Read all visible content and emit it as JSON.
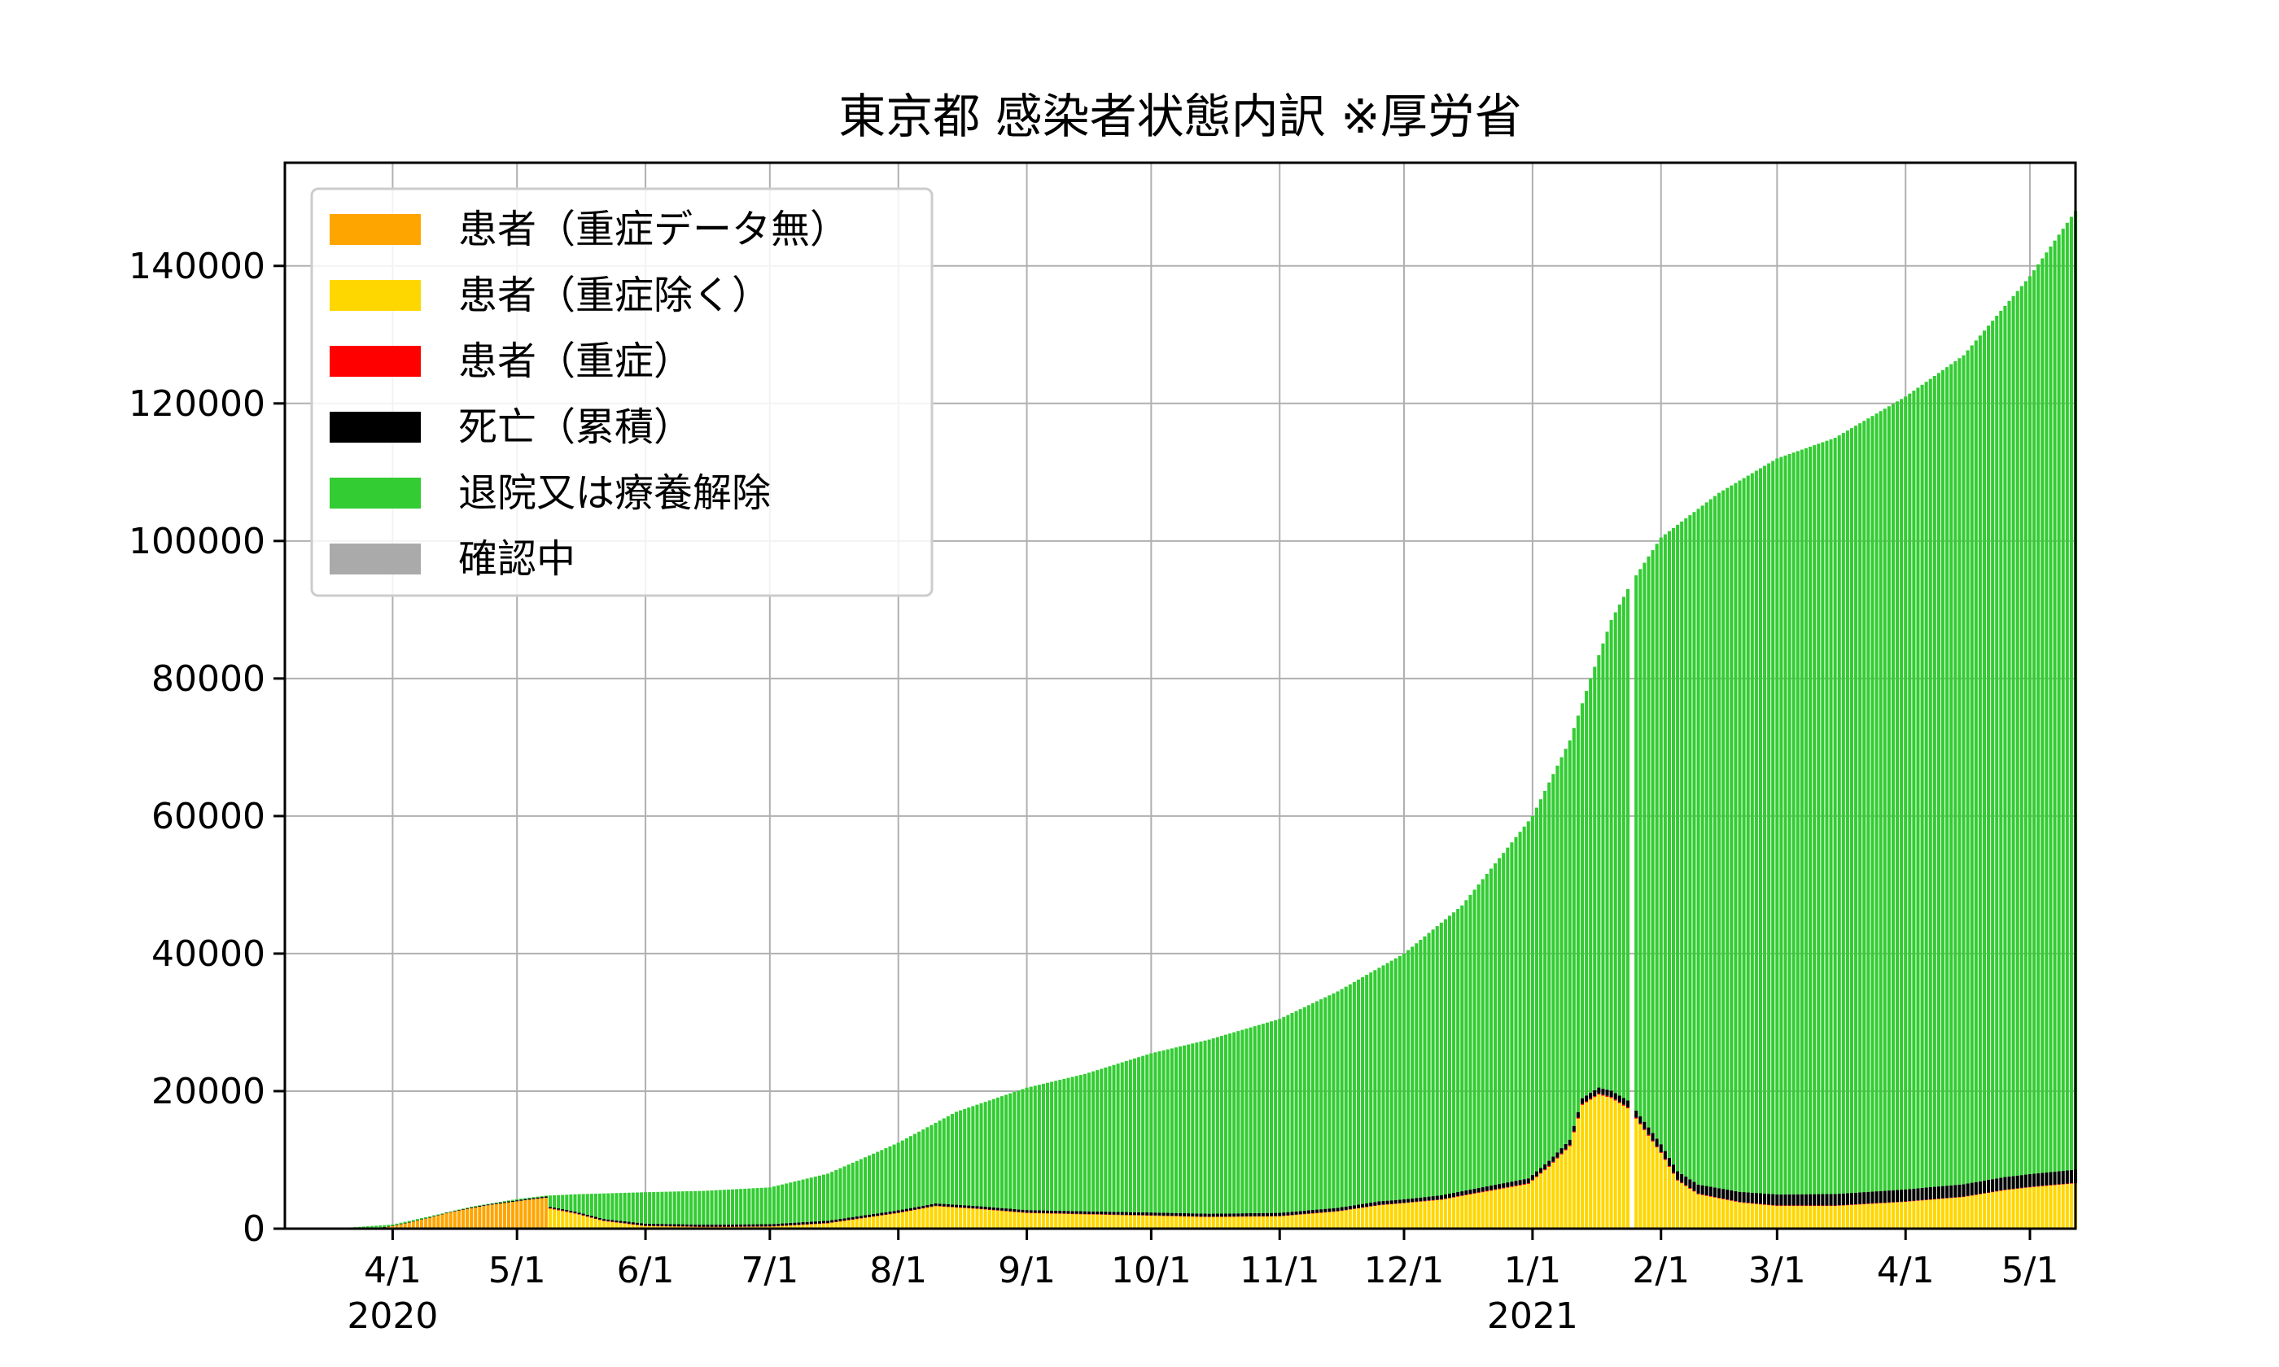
{
  "chart_data": {
    "type": "bar",
    "stacked": true,
    "title": "東京都 感染者状態内訳 ※厚労省",
    "xlabel": "",
    "ylabel": "",
    "ylim": [
      0,
      155000
    ],
    "x_range": [
      "2020-03-06",
      "2021-05-12"
    ],
    "grid": true,
    "legend_position": "top-left",
    "colors": {
      "patient_no_severe": "#FFA500",
      "patient_excl_severe": "#FFD700",
      "patient_severe": "#FF0000",
      "deaths": "#000000",
      "recovered": "#33CC33",
      "unconfirmed": "#AAAAAA"
    },
    "y_ticks": [
      {
        "value": 0,
        "label": "0"
      },
      {
        "value": 20000,
        "label": "20000"
      },
      {
        "value": 40000,
        "label": "40000"
      },
      {
        "value": 60000,
        "label": "60000"
      },
      {
        "value": 80000,
        "label": "80000"
      },
      {
        "value": 100000,
        "label": "100000"
      },
      {
        "value": 120000,
        "label": "120000"
      },
      {
        "value": 140000,
        "label": "140000"
      }
    ],
    "x_ticks": [
      {
        "date": "2020-04-01",
        "label": "4/1",
        "year_label": "2020"
      },
      {
        "date": "2020-05-01",
        "label": "5/1",
        "year_label": ""
      },
      {
        "date": "2020-06-01",
        "label": "6/1",
        "year_label": ""
      },
      {
        "date": "2020-07-01",
        "label": "7/1",
        "year_label": ""
      },
      {
        "date": "2020-08-01",
        "label": "8/1",
        "year_label": ""
      },
      {
        "date": "2020-09-01",
        "label": "9/1",
        "year_label": ""
      },
      {
        "date": "2020-10-01",
        "label": "10/1",
        "year_label": ""
      },
      {
        "date": "2020-11-01",
        "label": "11/1",
        "year_label": ""
      },
      {
        "date": "2020-12-01",
        "label": "12/1",
        "year_label": ""
      },
      {
        "date": "2021-01-01",
        "label": "1/1",
        "year_label": "2021"
      },
      {
        "date": "2021-02-01",
        "label": "2/1",
        "year_label": ""
      },
      {
        "date": "2021-03-01",
        "label": "3/1",
        "year_label": ""
      },
      {
        "date": "2021-04-01",
        "label": "4/1",
        "year_label": ""
      },
      {
        "date": "2021-05-01",
        "label": "5/1",
        "year_label": ""
      }
    ],
    "series": [
      {
        "key": "patient_no_severe",
        "name": "患者（重症データ無）"
      },
      {
        "key": "patient_excl_severe",
        "name": "患者（重症除く）"
      },
      {
        "key": "patient_severe",
        "name": "患者（重症）"
      },
      {
        "key": "deaths",
        "name": "死亡（累積）"
      },
      {
        "key": "recovered",
        "name": "退院又は療養解除"
      },
      {
        "key": "unconfirmed",
        "name": "確認中"
      }
    ],
    "missing_dates": [
      "2021-01-25"
    ],
    "keypoints": {
      "patient_no_severe": [
        [
          "2020-03-26",
          0
        ],
        [
          "2020-03-29",
          150
        ],
        [
          "2020-04-01",
          400
        ],
        [
          "2020-04-05",
          900
        ],
        [
          "2020-04-10",
          1600
        ],
        [
          "2020-04-15",
          2400
        ],
        [
          "2020-04-20",
          3000
        ],
        [
          "2020-04-25",
          3500
        ],
        [
          "2020-04-30",
          3900
        ],
        [
          "2020-05-05",
          4300
        ],
        [
          "2020-05-08",
          4500
        ]
      ],
      "patient_excl_severe": [
        [
          "2020-05-09",
          2900
        ],
        [
          "2020-05-15",
          2200
        ],
        [
          "2020-05-22",
          1100
        ],
        [
          "2020-06-01",
          400
        ],
        [
          "2020-06-15",
          250
        ],
        [
          "2020-07-01",
          300
        ],
        [
          "2020-07-15",
          800
        ],
        [
          "2020-08-01",
          2300
        ],
        [
          "2020-08-10",
          3300
        ],
        [
          "2020-08-20",
          2900
        ],
        [
          "2020-09-01",
          2300
        ],
        [
          "2020-09-15",
          2100
        ],
        [
          "2020-10-01",
          1900
        ],
        [
          "2020-10-15",
          1700
        ],
        [
          "2020-11-01",
          1800
        ],
        [
          "2020-11-15",
          2500
        ],
        [
          "2020-11-25",
          3400
        ],
        [
          "2020-12-01",
          3700
        ],
        [
          "2020-12-10",
          4200
        ],
        [
          "2020-12-20",
          5300
        ],
        [
          "2020-12-31",
          6500
        ],
        [
          "2021-01-05",
          9000
        ],
        [
          "2021-01-10",
          12000
        ],
        [
          "2021-01-13",
          18000
        ],
        [
          "2021-01-17",
          19500
        ],
        [
          "2021-01-20",
          19000
        ],
        [
          "2021-01-24",
          17500
        ],
        [
          "2021-01-26",
          16000
        ],
        [
          "2021-02-01",
          11000
        ],
        [
          "2021-02-05",
          7000
        ],
        [
          "2021-02-10",
          5000
        ],
        [
          "2021-02-20",
          3800
        ],
        [
          "2021-03-01",
          3300
        ],
        [
          "2021-03-15",
          3300
        ],
        [
          "2021-04-01",
          3900
        ],
        [
          "2021-04-15",
          4600
        ],
        [
          "2021-04-25",
          5600
        ],
        [
          "2021-05-01",
          6000
        ],
        [
          "2021-05-12",
          6600
        ]
      ],
      "patient_severe": [
        [
          "2020-05-09",
          100
        ],
        [
          "2020-06-01",
          30
        ],
        [
          "2020-08-10",
          30
        ],
        [
          "2020-12-01",
          60
        ],
        [
          "2021-01-20",
          160
        ],
        [
          "2021-02-15",
          90
        ],
        [
          "2021-04-01",
          60
        ],
        [
          "2021-05-12",
          80
        ]
      ],
      "deaths": [
        [
          "2020-03-26",
          0
        ],
        [
          "2020-05-09",
          180
        ],
        [
          "2020-06-01",
          300
        ],
        [
          "2020-07-01",
          325
        ],
        [
          "2020-08-01",
          335
        ],
        [
          "2020-09-01",
          370
        ],
        [
          "2020-10-01",
          410
        ],
        [
          "2020-11-01",
          450
        ],
        [
          "2020-12-01",
          520
        ],
        [
          "2021-01-01",
          700
        ],
        [
          "2021-01-20",
          900
        ],
        [
          "2021-02-01",
          1150
        ],
        [
          "2021-02-15",
          1400
        ],
        [
          "2021-03-01",
          1600
        ],
        [
          "2021-04-01",
          1750
        ],
        [
          "2021-05-12",
          1900
        ]
      ],
      "total": [
        [
          "2020-03-06",
          20
        ],
        [
          "2020-03-20",
          100
        ],
        [
          "2020-04-01",
          600
        ],
        [
          "2020-04-10",
          1800
        ],
        [
          "2020-04-20",
          3200
        ],
        [
          "2020-05-01",
          4300
        ],
        [
          "2020-05-08",
          4800
        ],
        [
          "2020-05-15",
          5000
        ],
        [
          "2020-06-01",
          5300
        ],
        [
          "2020-06-15",
          5500
        ],
        [
          "2020-07-01",
          6000
        ],
        [
          "2020-07-15",
          8000
        ],
        [
          "2020-08-01",
          12500
        ],
        [
          "2020-08-15",
          17000
        ],
        [
          "2020-09-01",
          20500
        ],
        [
          "2020-09-15",
          22500
        ],
        [
          "2020-10-01",
          25500
        ],
        [
          "2020-10-15",
          27500
        ],
        [
          "2020-11-01",
          30500
        ],
        [
          "2020-11-15",
          34500
        ],
        [
          "2020-12-01",
          40000
        ],
        [
          "2020-12-15",
          47000
        ],
        [
          "2021-01-01",
          60000
        ],
        [
          "2021-01-10",
          71000
        ],
        [
          "2021-01-15",
          80000
        ],
        [
          "2021-01-20",
          88500
        ],
        [
          "2021-01-24",
          93000
        ],
        [
          "2021-01-26",
          95000
        ],
        [
          "2021-02-01",
          100500
        ],
        [
          "2021-02-15",
          107000
        ],
        [
          "2021-03-01",
          112000
        ],
        [
          "2021-03-15",
          115000
        ],
        [
          "2021-04-01",
          121000
        ],
        [
          "2021-04-15",
          127000
        ],
        [
          "2021-05-01",
          138500
        ],
        [
          "2021-05-12",
          148000
        ]
      ]
    }
  }
}
